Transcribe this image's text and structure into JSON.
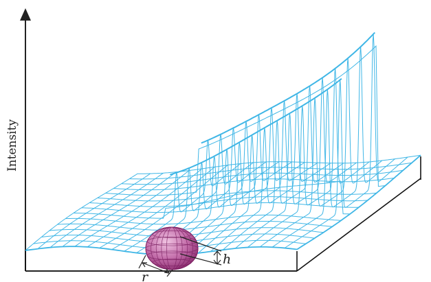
{
  "labels": {
    "y_axis": "Intensity",
    "radius": "r",
    "height": "h"
  },
  "colors": {
    "mesh": "#3fb6e6",
    "axis": "#222222",
    "block_edge": "#111111",
    "drop_fill": "#c06aa6",
    "drop_lines": "#7a1e60"
  }
}
